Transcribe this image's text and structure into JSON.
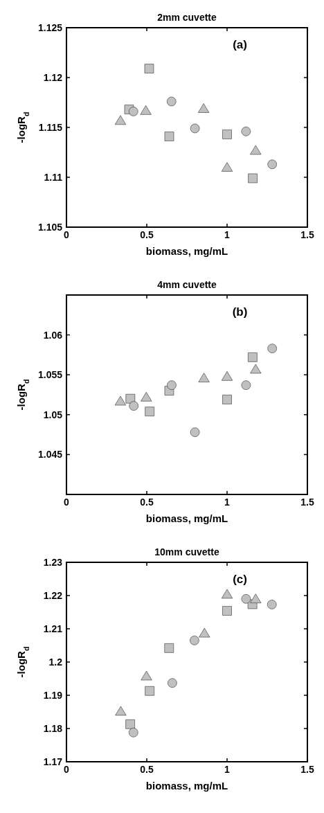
{
  "chart_data": [
    {
      "type": "scatter",
      "title": "2mm cuvette",
      "xlabel": "biomass, mg/mL",
      "ylabel": "-logR$_{d}$",
      "annotations": [
        "(a)"
      ],
      "xlim": [
        0,
        1.5
      ],
      "xticks": [
        0,
        0.5,
        1,
        1.5
      ],
      "ylim": [
        1.105,
        1.125
      ],
      "yticks": [
        1.105,
        1.11,
        1.115,
        1.12,
        1.125
      ],
      "series": [
        {
          "marker": "square",
          "color": "#c0c0c0",
          "x": [
            0.39,
            0.515,
            0.64,
            1.0,
            1.16
          ],
          "values": [
            1.1168,
            1.1209,
            1.1141,
            1.1143,
            1.1099
          ]
        },
        {
          "marker": "circle",
          "color": "#c0c0c0",
          "x": [
            0.417,
            0.654,
            0.8,
            1.118,
            1.281
          ],
          "values": [
            1.1166,
            1.1176,
            1.1149,
            1.1146,
            1.1113
          ]
        },
        {
          "marker": "triangle",
          "color": "#c0c0c0",
          "x": [
            0.336,
            0.494,
            0.854,
            1.0,
            1.178
          ],
          "values": [
            1.1157,
            1.1167,
            1.1169,
            1.111,
            1.1127
          ]
        }
      ]
    },
    {
      "type": "scatter",
      "title": "4mm cuvette",
      "xlabel": "biomass, mg/mL",
      "ylabel": "-logR$_{d}$",
      "annotations": [
        "(b)"
      ],
      "xlim": [
        0,
        1.5
      ],
      "xticks": [
        0,
        0.5,
        1,
        1.5
      ],
      "ylim": [
        1.04,
        1.065
      ],
      "yticks": [
        1.045,
        1.05,
        1.055,
        1.06
      ],
      "series": [
        {
          "marker": "square",
          "color": "#c0c0c0",
          "x": [
            0.398,
            0.518,
            0.64,
            1.0,
            1.159
          ],
          "values": [
            1.052,
            1.0504,
            1.053,
            1.0519,
            1.0572
          ]
        },
        {
          "marker": "circle",
          "color": "#c0c0c0",
          "x": [
            0.419,
            0.655,
            0.8,
            1.118,
            1.281
          ],
          "values": [
            1.0511,
            1.0537,
            1.0478,
            1.0537,
            1.0583
          ]
        },
        {
          "marker": "triangle",
          "color": "#c0c0c0",
          "x": [
            0.336,
            0.497,
            0.856,
            1.0,
            1.178
          ],
          "values": [
            1.0517,
            1.0522,
            1.0546,
            1.0548,
            1.0557
          ]
        }
      ]
    },
    {
      "type": "scatter",
      "title": "10mm cuvette",
      "xlabel": "biomass, mg/mL",
      "ylabel": "-logR$_{d}$",
      "annotations": [
        "(c)"
      ],
      "xlim": [
        0,
        1.5
      ],
      "xticks": [
        0,
        0.5,
        1,
        1.5
      ],
      "ylim": [
        1.17,
        1.23
      ],
      "yticks": [
        1.17,
        1.18,
        1.19,
        1.2,
        1.21,
        1.22,
        1.23
      ],
      "series": [
        {
          "marker": "square",
          "color": "#c0c0c0",
          "x": [
            0.397,
            0.518,
            0.639,
            1.0,
            1.158
          ],
          "values": [
            1.1813,
            1.1913,
            1.2042,
            1.2154,
            1.2174
          ]
        },
        {
          "marker": "circle",
          "color": "#c0c0c0",
          "x": [
            0.417,
            0.659,
            0.797,
            1.118,
            1.279
          ],
          "values": [
            1.1788,
            1.1937,
            1.2065,
            1.219,
            1.2173
          ]
        },
        {
          "marker": "triangle",
          "color": "#c0c0c0",
          "x": [
            0.338,
            0.498,
            0.859,
            1.0,
            1.178
          ],
          "values": [
            1.1852,
            1.1958,
            1.2087,
            1.2204,
            1.219
          ]
        }
      ]
    }
  ]
}
